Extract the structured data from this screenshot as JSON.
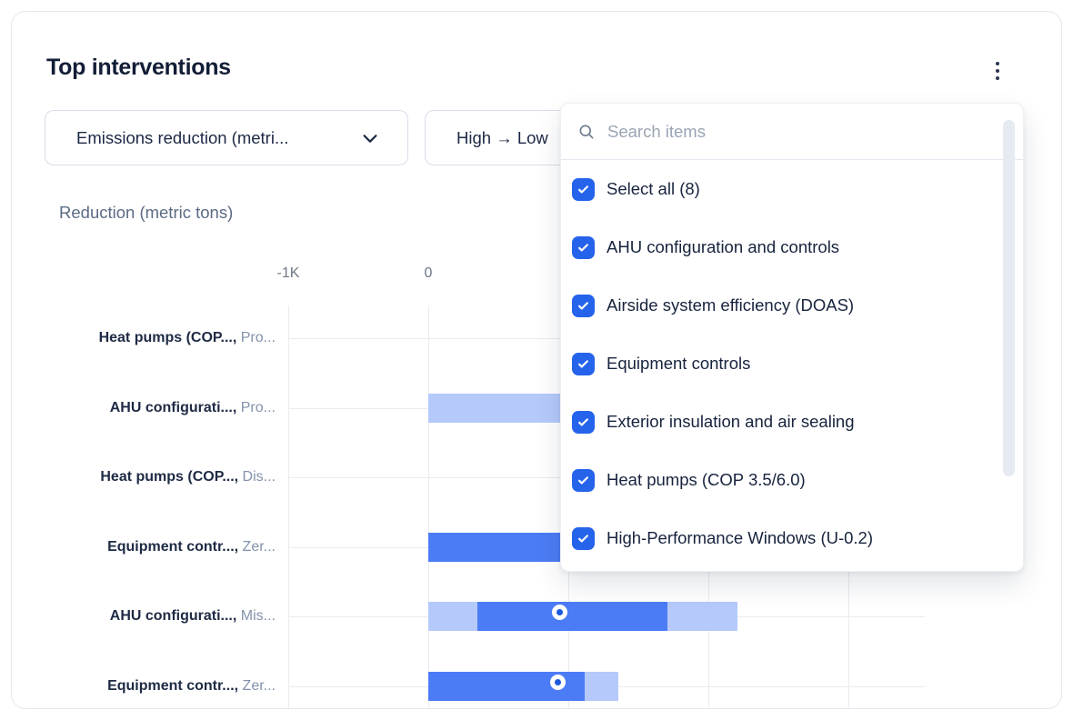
{
  "header": {
    "title": "Top interventions"
  },
  "filters": {
    "metric_dropdown": {
      "value": "Emissions reduction (metri..."
    },
    "sort_dropdown": {
      "value": "High → Low"
    }
  },
  "filter_popup": {
    "search": {
      "placeholder": "Search items"
    },
    "items": [
      {
        "label": "Select all (8)",
        "checked": true
      },
      {
        "label": "AHU configuration and controls",
        "checked": true
      },
      {
        "label": "Airside system efficiency (DOAS)",
        "checked": true
      },
      {
        "label": "Equipment controls",
        "checked": true
      },
      {
        "label": "Exterior insulation and air sealing",
        "checked": true
      },
      {
        "label": "Heat pumps (COP 3.5/6.0)",
        "checked": true
      },
      {
        "label": "High-Performance Windows (U-0.2)",
        "checked": true
      }
    ]
  },
  "chart_data": {
    "type": "bar",
    "orientation": "horizontal",
    "title": "Reduction (metric tons)",
    "xlabel": "Reduction (metric tons)",
    "xlim": [
      -1000,
      3600
    ],
    "grid": true,
    "units": "metric tons",
    "ticks": [
      {
        "value": -1000,
        "label": "-1K"
      },
      {
        "value": 0,
        "label": "0"
      },
      {
        "value": 1000,
        "label": ""
      },
      {
        "value": 2000,
        "label": ""
      },
      {
        "value": 3000,
        "label": ""
      }
    ],
    "rows": [
      {
        "label_bold": "Heat pumps (COP...,",
        "label_gray": "Pro...",
        "segments": []
      },
      {
        "label_bold": "AHU configurati...,",
        "label_gray": "Pro...",
        "segments": [
          {
            "from": 0,
            "to": 2100,
            "tone": "light"
          }
        ]
      },
      {
        "label_bold": "Heat pumps (COP...,",
        "label_gray": "Dis...",
        "segments": []
      },
      {
        "label_bold": "Equipment contr...,",
        "label_gray": "Zer...",
        "segments": [
          {
            "from": 0,
            "to": 2100,
            "tone": "dark"
          }
        ]
      },
      {
        "label_bold": "AHU configurati...,",
        "label_gray": "Mis...",
        "segments": [
          {
            "from": 0,
            "to": 350,
            "tone": "light"
          },
          {
            "from": 350,
            "to": 1710,
            "tone": "dark"
          },
          {
            "from": 1710,
            "to": 2210,
            "tone": "light"
          }
        ],
        "marker": 970
      },
      {
        "label_bold": "Equipment contr...,",
        "label_gray": "Zer...",
        "segments": [
          {
            "from": 0,
            "to": 1120,
            "tone": "dark"
          },
          {
            "from": 1120,
            "to": 1360,
            "tone": "light"
          }
        ],
        "marker": 955
      }
    ]
  },
  "colors": {
    "bar_dark": "#4c7cf5",
    "bar_light": "#b5c9fb",
    "marker": "#1c58da",
    "checkbox": "#2563eb",
    "title_text": "#121d36",
    "axis_text": "#6e7787",
    "gridline": "#e9ebef"
  }
}
